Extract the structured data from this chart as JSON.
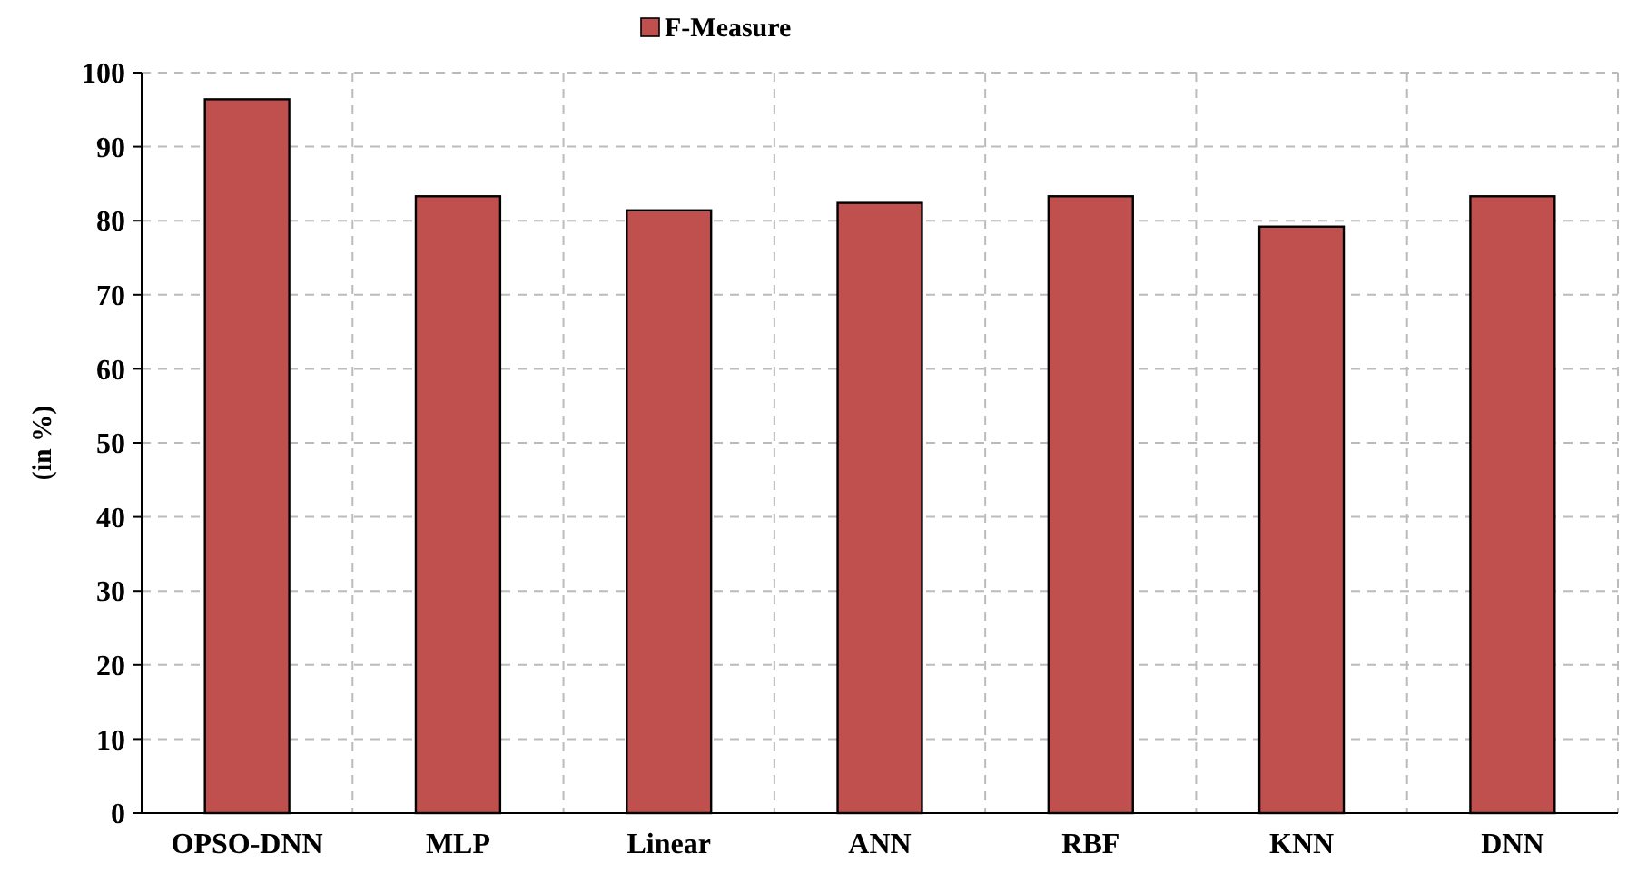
{
  "chart_data": {
    "type": "bar",
    "ylabel": "(in %)",
    "categories": [
      "OPSO-DNN",
      "MLP",
      "Linear",
      "ANN",
      "RBF",
      "KNN",
      "DNN"
    ],
    "series": [
      {
        "name": "F-Measure",
        "color": "#c0504d",
        "values": [
          96.4,
          83.3,
          81.4,
          82.4,
          83.3,
          79.2,
          83.3
        ]
      }
    ],
    "ylim": [
      0,
      100
    ],
    "yticks": [
      0,
      10,
      20,
      30,
      40,
      50,
      60,
      70,
      80,
      90,
      100
    ],
    "grid": true,
    "legend": "top"
  }
}
